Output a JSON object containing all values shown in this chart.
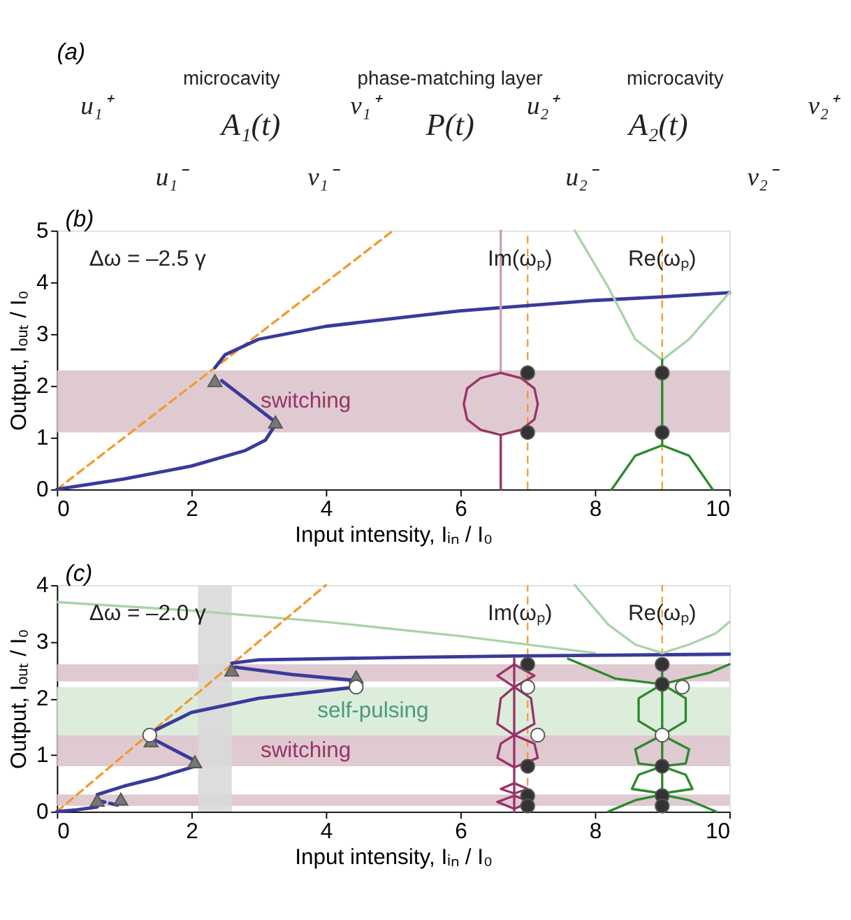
{
  "chart_data": [
    {
      "type": "other",
      "title": "(a)",
      "annotations": [
        "microcavity",
        "phase-matching layer",
        "microcavity",
        "A₁(t)",
        "P(t)",
        "A₂(t)",
        "u₁⁺",
        "v₁⁺",
        "u₂⁺",
        "v₂⁺",
        "u₁⁻",
        "v₁⁻",
        "u₂⁻",
        "v₂⁻"
      ]
    },
    {
      "type": "line",
      "title": "(b)",
      "xlabel": "Input intensity,  Iᵢₙ / I₀",
      "ylabel": "Output,  Iₒᵤₜ / I₀",
      "xlim": [
        0,
        10
      ],
      "ylim": [
        0,
        5
      ],
      "xticks": [
        0,
        2,
        4,
        6,
        8,
        10
      ],
      "yticks": [
        0,
        1,
        2,
        3,
        4,
        5
      ],
      "grid": false,
      "annotations": [
        "Δω = –2.5 γ",
        "Im(ωₚ)",
        "Re(ωₚ)"
      ],
      "bands": [
        {
          "axis": "y",
          "from": 1.1,
          "to": 2.3,
          "label": "switching",
          "color": "#dcc4cc"
        }
      ],
      "ref_lines": [
        {
          "axis": "x",
          "value": 7,
          "color": "#f39a2d",
          "line_style": "dashed"
        },
        {
          "axis": "x",
          "value": 9,
          "color": "#f39a2d",
          "line_style": "dashed"
        }
      ],
      "series": [
        {
          "type": "line",
          "color": "#f39a2d",
          "line_style": "dashed",
          "x": [
            0,
            5
          ],
          "values": [
            0,
            5
          ]
        },
        {
          "type": "line",
          "color": "#3a3a9a",
          "line_style": "solid",
          "x": [
            0,
            1,
            2,
            2.8,
            3.1,
            3.25
          ],
          "values": [
            0,
            0.2,
            0.45,
            0.75,
            0.95,
            1.25
          ]
        },
        {
          "type": "line",
          "color": "#3a3a9a",
          "line_style": "solid",
          "x": [
            2.45,
            2.8,
            3.2
          ],
          "values": [
            2.1,
            1.75,
            1.35
          ]
        },
        {
          "type": "line",
          "color": "#3a3a9a",
          "line_style": "solid",
          "x": [
            2.35,
            2.5,
            3,
            4,
            5,
            6,
            7,
            8,
            9,
            10
          ],
          "values": [
            2.35,
            2.6,
            2.9,
            3.15,
            3.3,
            3.45,
            3.55,
            3.65,
            3.72,
            3.8
          ]
        },
        {
          "type": "line",
          "color": "#993366",
          "line_style": "solid",
          "x": [
            6.6,
            6.6
          ],
          "values": [
            0,
            1.05
          ]
        },
        {
          "type": "line",
          "color": "#c9a0b8",
          "line_style": "solid",
          "x": [
            6.6,
            6.6
          ],
          "values": [
            2.25,
            5
          ]
        },
        {
          "type": "line",
          "color": "#993366",
          "line_style": "solid",
          "x": [
            6.6,
            6.9,
            7.1,
            7.15,
            7.1,
            6.9,
            6.6
          ],
          "values": [
            2.25,
            2.15,
            1.95,
            1.65,
            1.35,
            1.15,
            1.05
          ]
        },
        {
          "type": "line",
          "color": "#993366",
          "line_style": "solid",
          "x": [
            6.6,
            6.3,
            6.1,
            6.05,
            6.1,
            6.3,
            6.6
          ],
          "values": [
            2.25,
            2.15,
            1.95,
            1.65,
            1.35,
            1.15,
            1.05
          ]
        },
        {
          "type": "line",
          "color": "#a9d3a9",
          "line_style": "solid",
          "x": [
            7.7,
            8.2,
            8.6,
            9,
            9.4,
            9.8,
            10
          ],
          "values": [
            5,
            3.9,
            2.9,
            2.5,
            2.9,
            3.5,
            3.8
          ]
        },
        {
          "type": "line",
          "color": "#2a8a2a",
          "line_style": "solid",
          "x": [
            8.25,
            8.6,
            9,
            9.4,
            9.75
          ],
          "values": [
            0,
            0.65,
            0.85,
            0.65,
            0
          ]
        },
        {
          "type": "line",
          "color": "#2a8a2a",
          "line_style": "solid",
          "x": [
            9,
            9
          ],
          "values": [
            0.85,
            2.5
          ]
        },
        {
          "type": "scatter",
          "marker": "triangle",
          "color": "#777777",
          "x": [
            2.35,
            3.25
          ],
          "values": [
            2.1,
            1.3
          ]
        },
        {
          "type": "scatter",
          "marker": "circle",
          "color": "#333333",
          "x": [
            7,
            7,
            9,
            9
          ],
          "values": [
            2.25,
            1.1,
            2.25,
            1.1
          ]
        }
      ]
    },
    {
      "type": "line",
      "title": "(c)",
      "xlabel": "Input intensity,  Iᵢₙ / I₀",
      "ylabel": "Output,  Iₒᵤₜ / I₀",
      "xlim": [
        0,
        10
      ],
      "ylim": [
        0,
        4
      ],
      "xticks": [
        0,
        2,
        4,
        6,
        8,
        10
      ],
      "yticks": [
        0,
        1,
        2,
        3,
        4
      ],
      "grid": false,
      "annotations": [
        "Δω = –2.0 γ",
        "Im(ωₚ)",
        "Re(ωₚ)"
      ],
      "bands": [
        {
          "axis": "y",
          "from": 0.1,
          "to": 0.3,
          "color": "#dcc4cc"
        },
        {
          "axis": "y",
          "from": 0.8,
          "to": 1.35,
          "label": "switching",
          "color": "#dcc4cc"
        },
        {
          "axis": "y",
          "from": 1.35,
          "to": 2.2,
          "label": "self-pulsing",
          "color": "#d8ebd8"
        },
        {
          "axis": "y",
          "from": 2.3,
          "to": 2.6,
          "color": "#dcc4cc"
        },
        {
          "axis": "x",
          "from": 2.1,
          "to": 2.6,
          "color": "#d9d9d9"
        }
      ],
      "ref_lines": [
        {
          "axis": "x",
          "value": 7,
          "color": "#f39a2d",
          "line_style": "dashed"
        },
        {
          "axis": "x",
          "value": 9,
          "color": "#f39a2d",
          "line_style": "dashed"
        }
      ],
      "series": [
        {
          "type": "line",
          "color": "#a9d3a9",
          "line_style": "solid",
          "x": [
            0,
            2,
            4,
            6,
            8
          ],
          "values": [
            3.7,
            3.55,
            3.35,
            3.1,
            2.8
          ]
        },
        {
          "type": "line",
          "color": "#f39a2d",
          "line_style": "dashed",
          "x": [
            0,
            4
          ],
          "values": [
            0,
            4
          ]
        },
        {
          "type": "line",
          "color": "#3a3a9a",
          "line_style": "solid",
          "x": [
            0,
            0.3,
            0.6
          ],
          "values": [
            0,
            0.03,
            0.08
          ]
        },
        {
          "type": "line",
          "color": "#3a3a9a",
          "line_style": "dashed",
          "x": [
            0.6,
            0.95
          ],
          "values": [
            0.2,
            0.1
          ]
        },
        {
          "type": "line",
          "color": "#3a3a9a",
          "line_style": "solid",
          "x": [
            0.6,
            1,
            1.5,
            2.05
          ],
          "values": [
            0.3,
            0.45,
            0.6,
            0.8
          ]
        },
        {
          "type": "line",
          "color": "#3a3a9a",
          "line_style": "solid",
          "x": [
            1.4,
            2.05
          ],
          "values": [
            1.3,
            0.9
          ]
        },
        {
          "type": "line",
          "color": "#3a3a9a",
          "line_style": "solid",
          "x": [
            1.4,
            2,
            3,
            4.45
          ],
          "values": [
            1.4,
            1.75,
            2.0,
            2.2
          ]
        },
        {
          "type": "line",
          "color": "#3a3a9a",
          "line_style": "solid",
          "x": [
            4.4,
            3.5,
            2.65
          ],
          "values": [
            2.32,
            2.42,
            2.55
          ]
        },
        {
          "type": "line",
          "color": "#3a3a9a",
          "line_style": "solid",
          "x": [
            2.6,
            3,
            5,
            7,
            10
          ],
          "values": [
            2.62,
            2.68,
            2.72,
            2.75,
            2.78
          ]
        },
        {
          "type": "line",
          "color": "#993366",
          "line_style": "solid",
          "x": [
            6.8,
            6.8
          ],
          "values": [
            0,
            2.7
          ]
        },
        {
          "type": "line",
          "color": "#993366",
          "line_style": "solid",
          "x": [
            6.8,
            7.0,
            6.8,
            6.8,
            7.05,
            6.8
          ],
          "values": [
            0.5,
            0.4,
            0.32,
            0.28,
            0.17,
            0.05
          ]
        },
        {
          "type": "line",
          "color": "#993366",
          "line_style": "solid",
          "x": [
            6.8,
            6.6,
            6.8,
            6.8,
            6.55,
            6.8
          ],
          "values": [
            0.5,
            0.4,
            0.32,
            0.28,
            0.17,
            0.05
          ]
        },
        {
          "type": "line",
          "color": "#993366",
          "line_style": "solid",
          "x": [
            6.8,
            7.1,
            6.8,
            7.05,
            7.1,
            6.8,
            7.1,
            7.15,
            6.8
          ],
          "values": [
            2.6,
            2.4,
            2.2,
            2.0,
            1.55,
            1.35,
            1.2,
            0.95,
            0.78
          ]
        },
        {
          "type": "line",
          "color": "#993366",
          "line_style": "solid",
          "x": [
            6.8,
            6.55,
            6.8,
            6.6,
            6.55,
            6.8,
            6.6,
            6.55,
            6.8
          ],
          "values": [
            2.6,
            2.4,
            2.2,
            2.0,
            1.55,
            1.35,
            1.2,
            0.95,
            0.78
          ]
        },
        {
          "type": "line",
          "color": "#a9d3a9",
          "line_style": "solid",
          "x": [
            7.7,
            8.2,
            8.6,
            9,
            9.4,
            9.8,
            10
          ],
          "values": [
            4,
            3.3,
            2.95,
            2.8,
            2.95,
            3.15,
            3.35
          ]
        },
        {
          "type": "line",
          "color": "#2a8a2a",
          "line_style": "solid",
          "x": [
            7.6,
            8.3,
            9,
            9.7,
            10
          ],
          "values": [
            2.7,
            2.35,
            2.25,
            2.45,
            2.6
          ]
        },
        {
          "type": "line",
          "color": "#2a8a2a",
          "line_style": "solid",
          "x": [
            9,
            9
          ],
          "values": [
            0,
            2.6
          ]
        },
        {
          "type": "line",
          "color": "#2a8a2a",
          "line_style": "solid",
          "x": [
            9,
            8.65,
            8.65,
            9
          ],
          "values": [
            2.25,
            2.0,
            1.6,
            1.35
          ]
        },
        {
          "type": "line",
          "color": "#2a8a2a",
          "line_style": "solid",
          "x": [
            9,
            9.35,
            9.35,
            9
          ],
          "values": [
            2.25,
            2.0,
            1.6,
            1.35
          ]
        },
        {
          "type": "line",
          "color": "#2a8a2a",
          "line_style": "solid",
          "x": [
            9,
            8.6,
            8.65,
            9
          ],
          "values": [
            1.35,
            1.1,
            0.85,
            0.8
          ]
        },
        {
          "type": "line",
          "color": "#2a8a2a",
          "line_style": "solid",
          "x": [
            9,
            9.4,
            9.35,
            9
          ],
          "values": [
            1.35,
            1.1,
            0.85,
            0.8
          ]
        },
        {
          "type": "line",
          "color": "#2a8a2a",
          "line_style": "solid",
          "x": [
            9,
            8.65,
            8.55,
            9
          ],
          "values": [
            0.8,
            0.65,
            0.4,
            0.32
          ]
        },
        {
          "type": "line",
          "color": "#2a8a2a",
          "line_style": "solid",
          "x": [
            9,
            9.35,
            9.45,
            9
          ],
          "values": [
            0.8,
            0.65,
            0.4,
            0.32
          ]
        },
        {
          "type": "line",
          "color": "#2a8a2a",
          "line_style": "solid",
          "x": [
            8.2,
            8.6,
            9,
            9.4,
            9.8
          ],
          "values": [
            0,
            0.2,
            0.3,
            0.2,
            0
          ]
        },
        {
          "type": "scatter",
          "marker": "triangle",
          "color": "#777777",
          "x": [
            0.6,
            1.4,
            2.6,
            0.95,
            2.05,
            4.45
          ],
          "values": [
            0.2,
            1.25,
            2.5,
            0.22,
            0.88,
            2.38
          ]
        },
        {
          "type": "scatter",
          "marker": "circle",
          "color": "#333333",
          "x": [
            7,
            7,
            7,
            7,
            9,
            9,
            9,
            9,
            9
          ],
          "values": [
            2.6,
            0.8,
            0.28,
            0.1,
            2.6,
            2.25,
            0.8,
            0.28,
            0.1
          ]
        },
        {
          "type": "scatter",
          "marker": "circle",
          "color": "#ffffff",
          "x": [
            4.45,
            1.38,
            7,
            7.15,
            9,
            9.3
          ],
          "values": [
            2.2,
            1.35,
            2.2,
            1.35,
            1.35,
            2.2
          ]
        }
      ]
    }
  ]
}
